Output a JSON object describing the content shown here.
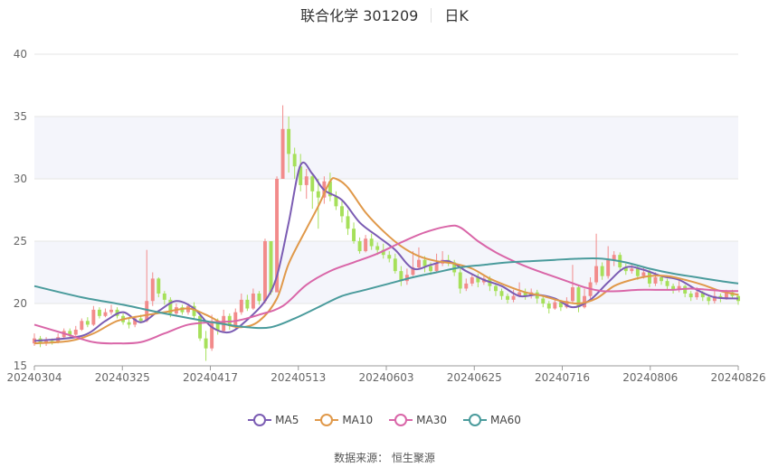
{
  "header": {
    "title": "联合化学 301209",
    "period": "日K"
  },
  "source": "数据来源： 恒生聚源",
  "colors": {
    "up": "#f28b8b",
    "down": "#a6e05a",
    "ma5": "#7b5cb3",
    "ma10": "#e0994a",
    "ma30": "#d966a8",
    "ma60": "#4a9b9c",
    "grid": "#e6e6e6",
    "band": "#f4f5fb"
  },
  "chart_data": {
    "type": "candlestick",
    "ylim": [
      15,
      40
    ],
    "yticks": [
      15,
      20,
      25,
      30,
      35,
      40
    ],
    "xticks": [
      "20240304",
      "20240325",
      "20240417",
      "20240513",
      "20240603",
      "20240625",
      "20240716",
      "20240806",
      "20240826"
    ],
    "legend": [
      "MA5",
      "MA10",
      "MA30",
      "MA60"
    ],
    "n_days": 120,
    "candles": [
      [
        16.8,
        17.2,
        17.6,
        16.6
      ],
      [
        17.2,
        16.8,
        17.4,
        16.5
      ],
      [
        16.8,
        17.0,
        17.3,
        16.6
      ],
      [
        17.0,
        16.9,
        17.2,
        16.7
      ],
      [
        16.9,
        17.3,
        17.6,
        16.8
      ],
      [
        17.3,
        17.8,
        18.0,
        17.2
      ],
      [
        17.8,
        17.5,
        18.0,
        17.3
      ],
      [
        17.5,
        17.9,
        18.2,
        17.4
      ],
      [
        17.9,
        18.6,
        18.8,
        17.8
      ],
      [
        18.6,
        18.3,
        18.9,
        18.1
      ],
      [
        18.3,
        19.5,
        19.8,
        18.2
      ],
      [
        19.5,
        19.0,
        19.7,
        18.8
      ],
      [
        19.0,
        19.3,
        19.6,
        18.9
      ],
      [
        19.3,
        19.5,
        19.9,
        19.1
      ],
      [
        19.5,
        19.0,
        19.7,
        18.8
      ],
      [
        19.0,
        18.5,
        19.2,
        18.3
      ],
      [
        18.5,
        18.3,
        18.8,
        18.0
      ],
      [
        18.3,
        18.8,
        19.0,
        18.1
      ],
      [
        18.8,
        18.6,
        19.1,
        18.4
      ],
      [
        18.6,
        20.2,
        24.3,
        18.5
      ],
      [
        20.2,
        22.0,
        22.5,
        19.8
      ],
      [
        22.0,
        20.8,
        22.1,
        20.5
      ],
      [
        20.8,
        20.3,
        21.0,
        19.9
      ],
      [
        20.3,
        19.2,
        20.5,
        18.9
      ],
      [
        19.2,
        19.7,
        20.0,
        19.0
      ],
      [
        19.7,
        19.3,
        19.9,
        19.1
      ],
      [
        19.3,
        19.8,
        20.0,
        19.1
      ],
      [
        19.8,
        19.0,
        20.1,
        18.8
      ],
      [
        19.0,
        17.2,
        19.2,
        17.0
      ],
      [
        17.2,
        16.4,
        17.8,
        15.4
      ],
      [
        16.4,
        18.6,
        19.1,
        16.2
      ],
      [
        18.6,
        17.8,
        18.8,
        17.5
      ],
      [
        17.8,
        19.0,
        19.5,
        17.7
      ],
      [
        19.0,
        18.2,
        19.2,
        17.9
      ],
      [
        18.2,
        19.3,
        19.6,
        18.0
      ],
      [
        19.3,
        20.3,
        20.8,
        19.1
      ],
      [
        20.3,
        19.6,
        20.7,
        19.4
      ],
      [
        19.6,
        20.8,
        21.2,
        19.5
      ],
      [
        20.8,
        20.2,
        21.0,
        19.9
      ],
      [
        20.2,
        25.0,
        25.2,
        20.0
      ],
      [
        25.0,
        20.9,
        21.5,
        20.7
      ],
      [
        20.9,
        30.0,
        30.2,
        26.8
      ],
      [
        30.0,
        34.0,
        35.9,
        33.4
      ],
      [
        34.0,
        32.0,
        35.0,
        30.5
      ],
      [
        32.0,
        31.0,
        32.5,
        30.0
      ],
      [
        31.0,
        29.5,
        32.0,
        29.0
      ],
      [
        29.5,
        30.2,
        30.8,
        28.4
      ],
      [
        30.2,
        29.0,
        30.5,
        27.6
      ],
      [
        29.0,
        28.5,
        30.0,
        26.0
      ],
      [
        28.5,
        29.8,
        30.2,
        28.0
      ],
      [
        29.8,
        28.6,
        30.5,
        28.2
      ],
      [
        28.6,
        27.8,
        29.0,
        27.5
      ],
      [
        27.8,
        27.0,
        28.2,
        26.5
      ],
      [
        27.0,
        26.0,
        27.5,
        25.5
      ],
      [
        26.0,
        25.0,
        26.5,
        24.8
      ],
      [
        25.0,
        24.2,
        25.3,
        24.0
      ],
      [
        24.2,
        25.2,
        25.5,
        24.1
      ],
      [
        25.2,
        24.6,
        25.6,
        24.3
      ],
      [
        24.6,
        24.3,
        24.9,
        23.9
      ],
      [
        24.3,
        23.9,
        24.8,
        23.6
      ],
      [
        23.9,
        23.6,
        24.2,
        23.3
      ],
      [
        23.6,
        22.6,
        24.0,
        22.4
      ],
      [
        22.6,
        21.8,
        23.0,
        21.4
      ],
      [
        21.8,
        22.3,
        22.8,
        21.5
      ],
      [
        22.3,
        22.9,
        24.2,
        22.2
      ],
      [
        22.9,
        23.5,
        24.5,
        22.8
      ],
      [
        23.5,
        23.0,
        23.8,
        22.5
      ],
      [
        23.0,
        22.6,
        23.3,
        22.3
      ],
      [
        22.6,
        23.2,
        24.0,
        22.5
      ],
      [
        23.2,
        23.5,
        24.2,
        23.0
      ],
      [
        23.5,
        23.3,
        23.9,
        23.0
      ],
      [
        23.3,
        22.5,
        23.5,
        22.2
      ],
      [
        22.5,
        21.2,
        22.8,
        20.8
      ],
      [
        21.2,
        21.6,
        22.0,
        21.0
      ],
      [
        21.6,
        22.1,
        22.4,
        21.4
      ],
      [
        22.1,
        21.7,
        22.4,
        21.3
      ],
      [
        21.7,
        22.0,
        22.3,
        21.5
      ],
      [
        22.0,
        21.4,
        22.2,
        21.0
      ],
      [
        21.4,
        21.0,
        21.6,
        20.6
      ],
      [
        21.0,
        20.6,
        21.2,
        20.3
      ],
      [
        20.6,
        20.3,
        20.8,
        20.0
      ],
      [
        20.3,
        20.6,
        21.1,
        20.1
      ],
      [
        20.6,
        20.9,
        21.7,
        20.5
      ],
      [
        20.9,
        20.6,
        21.2,
        20.3
      ],
      [
        20.6,
        20.9,
        21.2,
        20.4
      ],
      [
        20.9,
        20.4,
        21.1,
        20.0
      ],
      [
        20.4,
        20.0,
        20.7,
        19.7
      ],
      [
        20.0,
        19.6,
        20.2,
        19.2
      ],
      [
        19.6,
        20.1,
        20.4,
        19.5
      ],
      [
        20.1,
        19.7,
        20.3,
        19.4
      ],
      [
        19.7,
        20.2,
        20.5,
        19.6
      ],
      [
        20.2,
        21.3,
        23.1,
        20.0
      ],
      [
        21.3,
        19.7,
        21.5,
        19.3
      ],
      [
        19.7,
        20.6,
        21.2,
        19.6
      ],
      [
        20.6,
        21.7,
        22.1,
        20.4
      ],
      [
        21.7,
        23.0,
        25.6,
        21.5
      ],
      [
        23.0,
        22.2,
        23.3,
        21.9
      ],
      [
        22.2,
        23.5,
        24.6,
        22.0
      ],
      [
        23.5,
        23.9,
        24.2,
        23.0
      ],
      [
        23.9,
        22.9,
        24.1,
        22.6
      ],
      [
        22.9,
        22.6,
        23.2,
        22.3
      ],
      [
        22.6,
        22.8,
        23.1,
        22.4
      ],
      [
        22.8,
        22.2,
        23.0,
        21.9
      ],
      [
        22.2,
        22.5,
        22.9,
        22.0
      ],
      [
        22.5,
        21.6,
        22.7,
        21.3
      ],
      [
        21.6,
        22.1,
        22.5,
        21.4
      ],
      [
        22.1,
        21.8,
        22.3,
        21.5
      ],
      [
        21.8,
        21.4,
        22.0,
        21.1
      ],
      [
        21.4,
        21.1,
        21.6,
        20.8
      ],
      [
        21.1,
        21.4,
        21.8,
        20.9
      ],
      [
        21.4,
        20.8,
        21.5,
        20.5
      ],
      [
        20.8,
        20.5,
        21.0,
        20.2
      ],
      [
        20.5,
        20.9,
        21.3,
        20.3
      ],
      [
        20.9,
        20.5,
        21.0,
        20.2
      ],
      [
        20.5,
        20.2,
        20.7,
        19.9
      ],
      [
        20.2,
        20.6,
        21.0,
        20.0
      ],
      [
        20.6,
        20.4,
        20.8,
        20.1
      ],
      [
        20.4,
        20.9,
        21.1,
        20.3
      ],
      [
        20.9,
        20.6,
        21.1,
        20.4
      ],
      [
        20.6,
        20.2,
        20.8,
        19.9
      ]
    ],
    "series": [
      {
        "name": "MA5",
        "values": [
          [
            0,
            17.0
          ],
          [
            8,
            17.4
          ],
          [
            12,
            18.6
          ],
          [
            15,
            19.3
          ],
          [
            18,
            18.5
          ],
          [
            21,
            19.4
          ],
          [
            24,
            20.2
          ],
          [
            27,
            19.6
          ],
          [
            30,
            18.1
          ],
          [
            33,
            17.7
          ],
          [
            36,
            18.7
          ],
          [
            39,
            20.2
          ],
          [
            41,
            22.2
          ],
          [
            43,
            26.5
          ],
          [
            45,
            31.1
          ],
          [
            47,
            30.4
          ],
          [
            49,
            29.1
          ],
          [
            52,
            28.3
          ],
          [
            55,
            26.5
          ],
          [
            58,
            25.4
          ],
          [
            61,
            24.3
          ],
          [
            64,
            22.8
          ],
          [
            67,
            23.1
          ],
          [
            70,
            23.4
          ],
          [
            73,
            22.6
          ],
          [
            76,
            21.9
          ],
          [
            79,
            21.4
          ],
          [
            82,
            20.6
          ],
          [
            85,
            20.7
          ],
          [
            88,
            20.4
          ],
          [
            91,
            19.7
          ],
          [
            94,
            20.3
          ],
          [
            97,
            21.7
          ],
          [
            100,
            22.9
          ],
          [
            103,
            22.7
          ],
          [
            106,
            22.2
          ],
          [
            109,
            21.9
          ],
          [
            112,
            21.1
          ],
          [
            115,
            20.5
          ],
          [
            119,
            20.4
          ]
        ]
      },
      {
        "name": "MA10",
        "values": [
          [
            0,
            16.8
          ],
          [
            6,
            17.0
          ],
          [
            10,
            17.6
          ],
          [
            14,
            18.6
          ],
          [
            18,
            19.0
          ],
          [
            22,
            19.3
          ],
          [
            26,
            19.6
          ],
          [
            29,
            19.1
          ],
          [
            32,
            18.4
          ],
          [
            35,
            18.1
          ],
          [
            38,
            18.6
          ],
          [
            41,
            20.4
          ],
          [
            43,
            23.2
          ],
          [
            46,
            26.0
          ],
          [
            48,
            27.8
          ],
          [
            50,
            29.8
          ],
          [
            51,
            30.0
          ],
          [
            53,
            29.3
          ],
          [
            56,
            27.3
          ],
          [
            59,
            25.8
          ],
          [
            62,
            24.6
          ],
          [
            65,
            23.8
          ],
          [
            68,
            23.4
          ],
          [
            71,
            23.2
          ],
          [
            74,
            22.8
          ],
          [
            77,
            22.0
          ],
          [
            80,
            21.4
          ],
          [
            83,
            20.9
          ],
          [
            86,
            20.6
          ],
          [
            89,
            20.2
          ],
          [
            92,
            20.0
          ],
          [
            95,
            20.4
          ],
          [
            98,
            21.4
          ],
          [
            101,
            21.9
          ],
          [
            104,
            22.2
          ],
          [
            107,
            22.2
          ],
          [
            110,
            21.9
          ],
          [
            113,
            21.5
          ],
          [
            116,
            21.0
          ],
          [
            119,
            20.7
          ]
        ]
      },
      {
        "name": "MA30",
        "values": [
          [
            0,
            18.3
          ],
          [
            5,
            17.6
          ],
          [
            10,
            16.9
          ],
          [
            14,
            16.8
          ],
          [
            18,
            16.9
          ],
          [
            22,
            17.6
          ],
          [
            26,
            18.3
          ],
          [
            30,
            18.5
          ],
          [
            34,
            18.6
          ],
          [
            38,
            19.1
          ],
          [
            42,
            19.8
          ],
          [
            46,
            21.5
          ],
          [
            50,
            22.6
          ],
          [
            54,
            23.3
          ],
          [
            58,
            24.0
          ],
          [
            62,
            24.9
          ],
          [
            66,
            25.7
          ],
          [
            70,
            26.2
          ],
          [
            72,
            26.1
          ],
          [
            75,
            25.0
          ],
          [
            78,
            24.1
          ],
          [
            81,
            23.4
          ],
          [
            84,
            22.8
          ],
          [
            87,
            22.3
          ],
          [
            90,
            21.8
          ],
          [
            93,
            21.3
          ],
          [
            96,
            21.0
          ],
          [
            99,
            21.0
          ],
          [
            102,
            21.1
          ],
          [
            105,
            21.1
          ],
          [
            108,
            21.1
          ],
          [
            111,
            21.2
          ],
          [
            114,
            21.1
          ],
          [
            117,
            21.0
          ],
          [
            119,
            21.0
          ]
        ]
      },
      {
        "name": "MA60",
        "values": [
          [
            0,
            21.4
          ],
          [
            8,
            20.5
          ],
          [
            15,
            19.9
          ],
          [
            22,
            19.2
          ],
          [
            30,
            18.5
          ],
          [
            36,
            18.1
          ],
          [
            40,
            18.1
          ],
          [
            44,
            18.8
          ],
          [
            48,
            19.7
          ],
          [
            52,
            20.6
          ],
          [
            56,
            21.1
          ],
          [
            60,
            21.6
          ],
          [
            64,
            22.1
          ],
          [
            68,
            22.5
          ],
          [
            72,
            22.9
          ],
          [
            76,
            23.1
          ],
          [
            80,
            23.3
          ],
          [
            84,
            23.4
          ],
          [
            88,
            23.5
          ],
          [
            92,
            23.6
          ],
          [
            96,
            23.6
          ],
          [
            100,
            23.3
          ],
          [
            104,
            22.8
          ],
          [
            108,
            22.4
          ],
          [
            112,
            22.1
          ],
          [
            116,
            21.8
          ],
          [
            119,
            21.6
          ]
        ]
      }
    ]
  }
}
